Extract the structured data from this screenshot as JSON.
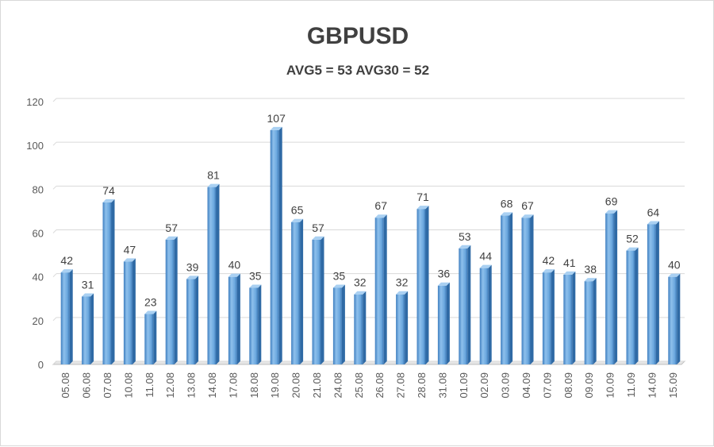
{
  "chart_data": {
    "type": "bar",
    "title": "GBPUSD",
    "subtitle": "AVG5 = 53 AVG30 = 52",
    "categories": [
      "05.08",
      "06.08",
      "07.08",
      "10.08",
      "11.08",
      "12.08",
      "13.08",
      "14.08",
      "17.08",
      "18.08",
      "19.08",
      "20.08",
      "21.08",
      "24.08",
      "25.08",
      "26.08",
      "27.08",
      "28.08",
      "31.08",
      "01.09",
      "02.09",
      "03.09",
      "04.09",
      "07.09",
      "08.09",
      "09.09",
      "10.09",
      "11.09",
      "14.09",
      "15.09"
    ],
    "values": [
      42,
      31,
      74,
      47,
      23,
      57,
      39,
      81,
      40,
      35,
      107,
      65,
      57,
      35,
      32,
      67,
      32,
      71,
      36,
      53,
      44,
      68,
      67,
      42,
      41,
      38,
      69,
      52,
      64,
      40
    ],
    "ylim": [
      0,
      120
    ],
    "yticks": [
      0,
      20,
      40,
      60,
      80,
      100,
      120
    ],
    "grid": true,
    "legend": "none",
    "bar_color": "#5b9bd5",
    "data_labels": true
  }
}
